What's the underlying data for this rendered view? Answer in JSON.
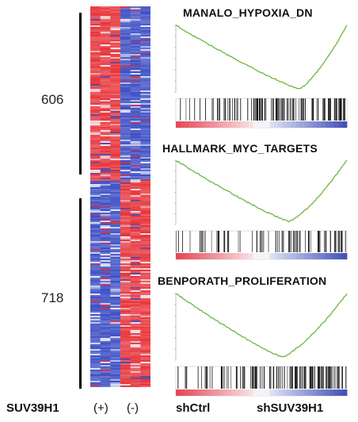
{
  "heatmap": {
    "up_count": "606",
    "down_count": "718",
    "up_fraction": 0.4577,
    "colors": {
      "red": "#e8353a",
      "blue": "#3d4fc4",
      "white": "#f4f4fb"
    }
  },
  "gsea_panels": [
    {
      "title": "MANALO_HYPOXIA_DN",
      "min_position": 0.72,
      "end_value": 0.0,
      "bar_density": "heavy-right"
    },
    {
      "title": "HALLMARK_MYC_TARGETS",
      "min_position": 0.66,
      "end_value": 0.0,
      "bar_density": "medium"
    },
    {
      "title": "BENPORATH_PROLIFERATION",
      "min_position": 0.62,
      "end_value": 0.0,
      "bar_density": "heavy-right"
    }
  ],
  "colors": {
    "curve": "#6ab83c",
    "ranking_red": "#e34a56",
    "ranking_blue": "#4452b8"
  },
  "bottom": {
    "gene_label": "SUV39H1",
    "plus_label": "(+)",
    "minus_label": "(-)",
    "ctrl_label": "shCtrl",
    "kd_label": "shSUV39H1"
  }
}
